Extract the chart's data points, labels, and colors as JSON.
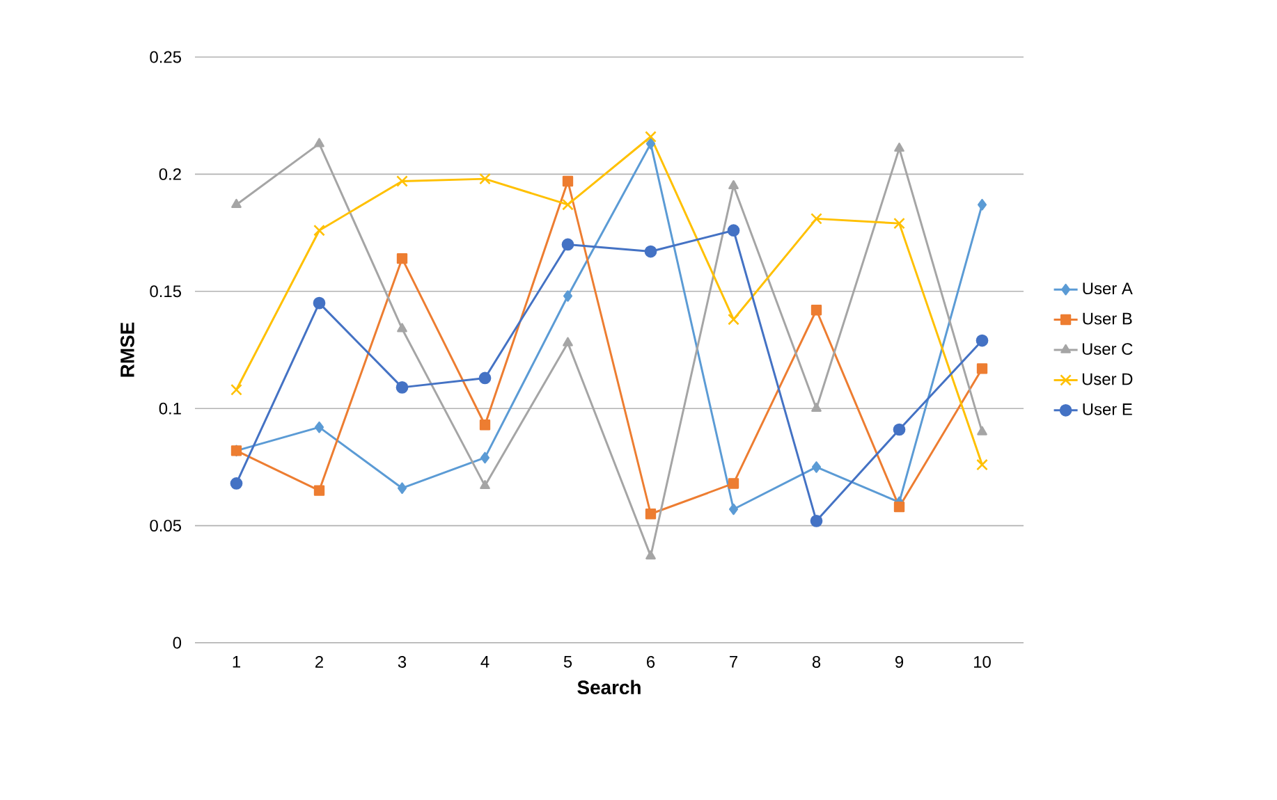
{
  "chart_data": {
    "type": "line",
    "xlabel": "Search",
    "ylabel": "RMSE",
    "categories": [
      "1",
      "2",
      "3",
      "4",
      "5",
      "6",
      "7",
      "8",
      "9",
      "10"
    ],
    "ylim": [
      0,
      0.25
    ],
    "yticks": [
      0,
      0.05,
      0.1,
      0.15,
      0.2,
      0.25
    ],
    "grid": "y",
    "legend": "right",
    "line_style": "solid",
    "series": [
      {
        "name": "User A",
        "color": "#5b9bd5",
        "marker": "diamond",
        "values": [
          0.082,
          0.092,
          0.066,
          0.079,
          0.148,
          0.213,
          0.057,
          0.075,
          0.06,
          0.187
        ]
      },
      {
        "name": "User B",
        "color": "#ed7d31",
        "marker": "square",
        "values": [
          0.082,
          0.065,
          0.164,
          0.093,
          0.197,
          0.055,
          0.068,
          0.142,
          0.058,
          0.117
        ]
      },
      {
        "name": "User C",
        "color": "#a5a5a5",
        "marker": "triangle",
        "values": [
          0.187,
          0.213,
          0.134,
          0.067,
          0.128,
          0.037,
          0.195,
          0.1,
          0.211,
          0.09
        ]
      },
      {
        "name": "User D",
        "color": "#ffc000",
        "marker": "cross",
        "values": [
          0.108,
          0.176,
          0.197,
          0.198,
          0.187,
          0.216,
          0.138,
          0.181,
          0.179,
          0.076
        ]
      },
      {
        "name": "User E",
        "color": "#4472c4",
        "marker": "circle",
        "values": [
          0.068,
          0.145,
          0.109,
          0.113,
          0.17,
          0.167,
          0.176,
          0.052,
          0.091,
          0.129
        ]
      }
    ]
  }
}
